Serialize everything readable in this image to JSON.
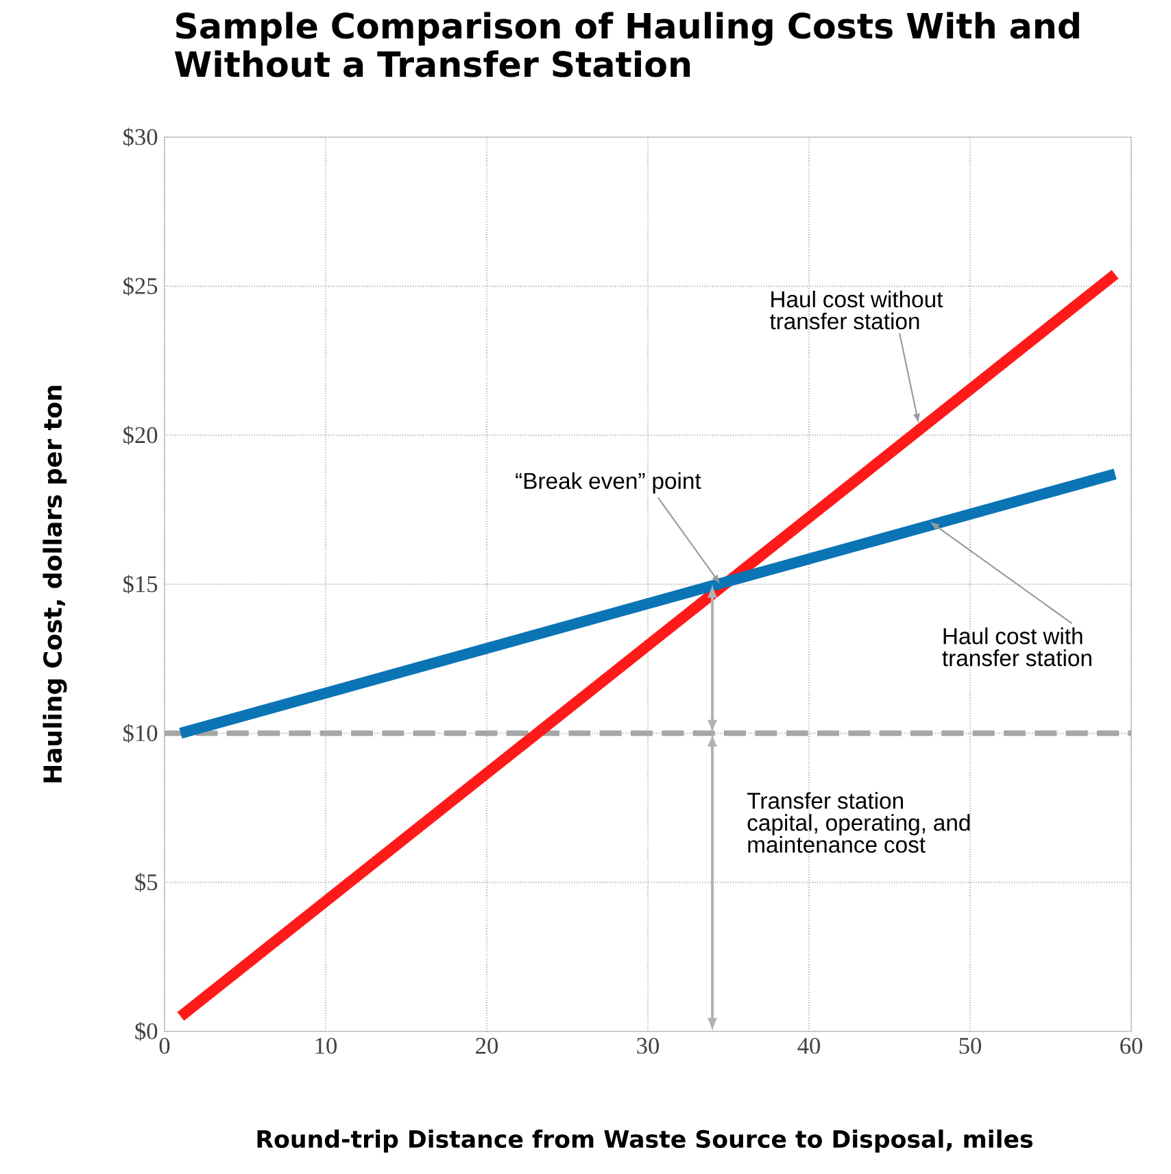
{
  "chart_data": {
    "type": "line",
    "title": "Sample Comparison of Hauling Costs With and Without a Transfer Station",
    "xlabel": "Round-trip Distance from Waste Source to Disposal, miles",
    "ylabel": "Hauling Cost, dollars per ton",
    "x": [
      1,
      59
    ],
    "series": [
      {
        "color": "#ff1a1a",
        "values": [
          0.5,
          25.4
        ]
      },
      {
        "color": "#0a74b5",
        "values": [
          10,
          18.7
        ]
      }
    ],
    "xlim": [
      0,
      60
    ],
    "ylim": [
      0,
      30
    ],
    "xticks": [
      0,
      10,
      20,
      30,
      40,
      50,
      60
    ],
    "yticks": [
      {
        "value": 0,
        "label": "$0"
      },
      {
        "value": 5,
        "label": "$5"
      },
      {
        "value": 10,
        "label": "$10"
      },
      {
        "value": 15,
        "label": "$15"
      },
      {
        "value": 20,
        "label": "$20"
      },
      {
        "value": 25,
        "label": "$25"
      },
      {
        "value": 30,
        "label": "$30"
      }
    ],
    "grid": true,
    "marker": "none",
    "line_style": "solid",
    "ref_lines": [
      {
        "axis": "y",
        "value": 10,
        "color": "#a6a6a6",
        "line_style": "dashed"
      }
    ],
    "annotations": [
      {
        "text": "“Break even” point",
        "x": 34.5,
        "y": 15
      },
      {
        "text": "Haul cost without transfer station",
        "x": 46.8,
        "y": 20.4
      },
      {
        "text": "Haul cost with transfer station",
        "x": 47.5,
        "y": 17.1
      },
      "Transfer station capital, operating, and maintenance cost"
    ]
  }
}
